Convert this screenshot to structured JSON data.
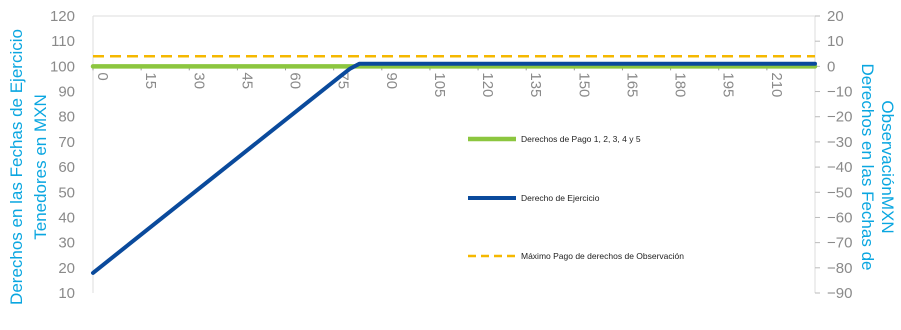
{
  "chart_data": {
    "type": "line",
    "left_axis": {
      "title_lines": [
        "Derechos en las Fechas de Ejercicio",
        "Tenedores en MXN"
      ],
      "ticks": [
        10,
        20,
        30,
        40,
        50,
        60,
        70,
        80,
        90,
        100,
        110,
        120
      ],
      "ylim": [
        10,
        120
      ]
    },
    "right_axis": {
      "title_lines": [
        "Derechos en las Fechas de",
        "ObservaciónMXN"
      ],
      "ticks": [
        20,
        10,
        0,
        -10,
        -20,
        -30,
        -40,
        -50,
        -60,
        -70,
        -80,
        -90
      ],
      "ylim": [
        -90,
        20
      ]
    },
    "x_axis": {
      "ticks": [
        "0",
        "15",
        "30",
        "45",
        "60",
        "75",
        "90",
        "105",
        "120",
        "135",
        "150",
        "165",
        "180",
        "195",
        "210"
      ],
      "xlim": [
        0,
        225
      ],
      "crosses_left_at": 100
    },
    "series": [
      {
        "name": "Derechos de Pago 1, 2, 3, 4 y 5",
        "style": "solid-thick",
        "color": "#8cc63f",
        "axis": "left",
        "x": [
          0,
          225
        ],
        "y": [
          100,
          100
        ]
      },
      {
        "name": "Derecho de Ejercicio",
        "style": "solid",
        "color": "#0a4a9c",
        "axis": "left",
        "x": [
          0,
          77,
          80,
          83,
          225
        ],
        "y": [
          18,
          96,
          99,
          101,
          101
        ]
      },
      {
        "name": "Máximo Pago de derechos de Observación",
        "style": "dashed",
        "color": "#f5b800",
        "axis": "right",
        "x": [
          0,
          225
        ],
        "y": [
          4,
          4
        ]
      }
    ],
    "legend_placement": "center-right"
  }
}
